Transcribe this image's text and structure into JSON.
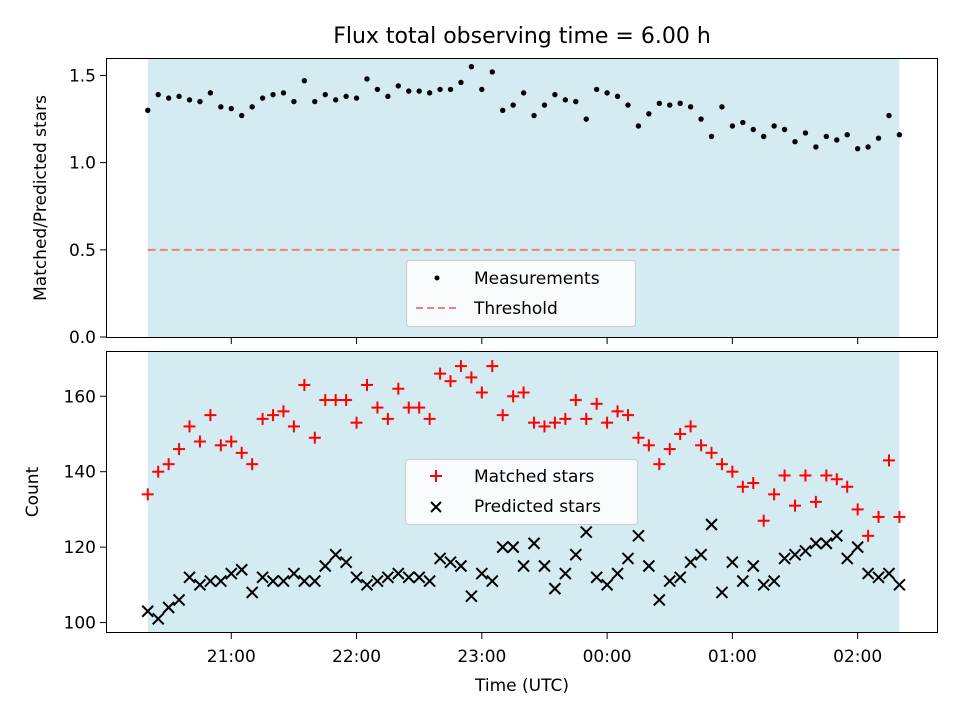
{
  "title": "Flux total observing time = 6.00 h",
  "colors": {
    "band": "#d4ebf2",
    "measurement": "#000000",
    "threshold": "#f08080",
    "matched": "#ff0000",
    "predicted": "#000000"
  },
  "chart_data": [
    {
      "type": "scatter",
      "ylabel": "Matched/Predicted stars",
      "ylim": [
        0.0,
        1.6
      ],
      "yticks": [
        {
          "value": 0.0,
          "label": "0.0"
        },
        {
          "value": 0.5,
          "label": "0.5"
        },
        {
          "value": 1.0,
          "label": "1.0"
        },
        {
          "value": 1.5,
          "label": "1.5"
        }
      ],
      "legend_position": "lower center",
      "threshold": {
        "name": "Threshold",
        "value": 0.5
      },
      "series": [
        {
          "name": "Measurements",
          "marker": "dot",
          "values": [
            1.3,
            1.39,
            1.37,
            1.38,
            1.36,
            1.35,
            1.4,
            1.32,
            1.31,
            1.27,
            1.32,
            1.37,
            1.39,
            1.4,
            1.35,
            1.47,
            1.35,
            1.39,
            1.36,
            1.38,
            1.37,
            1.48,
            1.42,
            1.38,
            1.44,
            1.41,
            1.41,
            1.4,
            1.42,
            1.42,
            1.46,
            1.55,
            1.42,
            1.52,
            1.3,
            1.33,
            1.4,
            1.27,
            1.33,
            1.39,
            1.36,
            1.35,
            1.25,
            1.42,
            1.4,
            1.38,
            1.33,
            1.21,
            1.28,
            1.34,
            1.33,
            1.34,
            1.32,
            1.25,
            1.15,
            1.32,
            1.21,
            1.23,
            1.19,
            1.15,
            1.21,
            1.19,
            1.12,
            1.17,
            1.09,
            1.15,
            1.13,
            1.16,
            1.08,
            1.09,
            1.14,
            1.27,
            1.16
          ]
        }
      ]
    },
    {
      "type": "scatter",
      "ylabel": "Count",
      "xlabel": "Time (UTC)",
      "ylim": [
        97.5,
        172
      ],
      "yticks": [
        {
          "value": 100,
          "label": "100"
        },
        {
          "value": 120,
          "label": "120"
        },
        {
          "value": 140,
          "label": "140"
        },
        {
          "value": 160,
          "label": "160"
        }
      ],
      "x_time": {
        "start": "20:20",
        "end": "02:20",
        "points": 73,
        "axis_min": "20:00",
        "axis_max": "02:38",
        "ticks": [
          "21:00",
          "22:00",
          "23:00",
          "00:00",
          "01:00",
          "02:00"
        ]
      },
      "legend_position": "center",
      "series": [
        {
          "name": "Matched stars",
          "marker": "plus",
          "values": [
            134,
            140,
            142,
            146,
            152,
            148,
            155,
            147,
            148,
            145,
            142,
            154,
            155,
            156,
            152,
            163,
            149,
            159,
            159,
            159,
            153,
            163,
            157,
            154,
            162,
            157,
            157,
            154,
            166,
            164,
            168,
            165,
            161,
            168,
            155,
            160,
            161,
            153,
            152,
            153,
            154,
            159,
            154,
            158,
            153,
            156,
            155,
            149,
            147,
            142,
            146,
            150,
            152,
            147,
            145,
            142,
            140,
            136,
            137,
            127,
            134,
            139,
            131,
            139,
            132,
            139,
            138,
            136,
            130,
            123,
            128,
            143,
            128
          ]
        },
        {
          "name": "Predicted stars",
          "marker": "x",
          "values": [
            103,
            101,
            104,
            106,
            112,
            110,
            111,
            111,
            113,
            114,
            108,
            112,
            111,
            111,
            113,
            111,
            111,
            115,
            118,
            116,
            112,
            110,
            111,
            112,
            113,
            112,
            112,
            111,
            117,
            116,
            115,
            107,
            113,
            111,
            120,
            120,
            115,
            121,
            115,
            109,
            113,
            118,
            124,
            112,
            110,
            113,
            117,
            123,
            115,
            106,
            111,
            112,
            116,
            118,
            126,
            108,
            116,
            111,
            115,
            110,
            111,
            117,
            118,
            119,
            121,
            121,
            123,
            117,
            120,
            113,
            112,
            113,
            110
          ]
        }
      ]
    }
  ]
}
